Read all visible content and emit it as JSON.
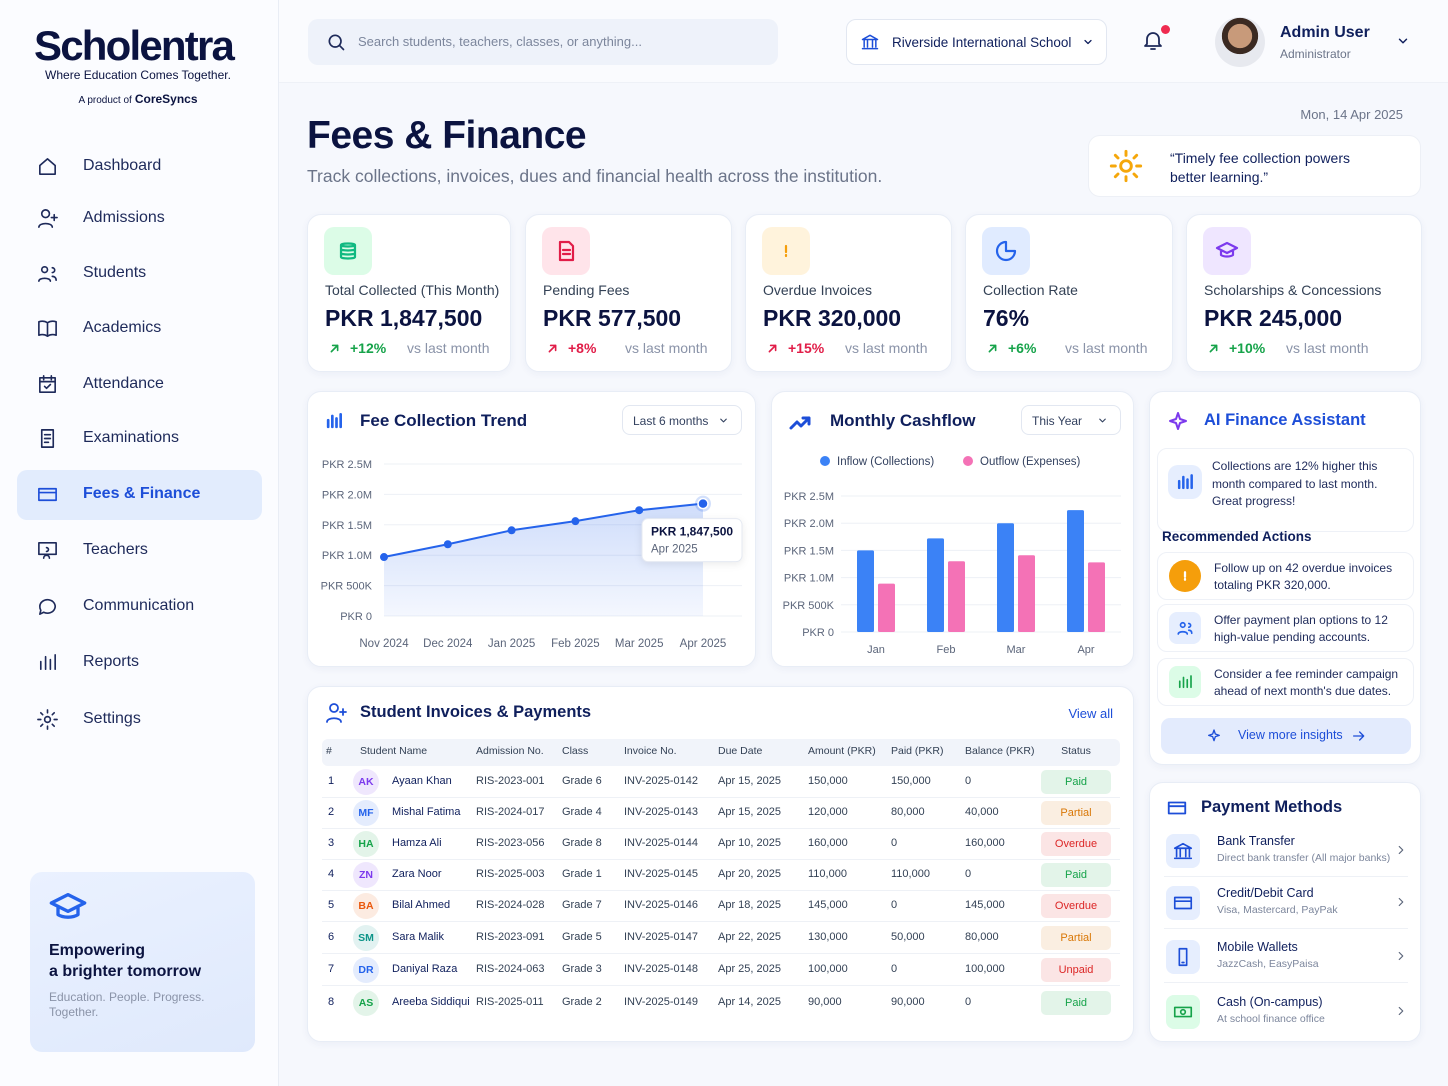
{
  "sidebar": {
    "brand": "Scholentra",
    "tagline": "Where Education Comes Together.",
    "product_prefix": "A product of",
    "product_name": "CoreSyncs",
    "nav": [
      "Dashboard",
      "Admissions",
      "Students",
      "Academics",
      "Attendance",
      "Examinations",
      "Fees & Finance",
      "Teachers",
      "Communication",
      "Reports",
      "Settings"
    ],
    "active_nav": 6,
    "promo": {
      "title_lines": [
        "Empowering",
        "a brighter tomorrow"
      ],
      "text": "Education. People. Progress. Together."
    }
  },
  "topbar": {
    "search_placeholder": "Search students, teachers, classes, or anything...",
    "school": "Riverside International School",
    "user_name": "Admin User",
    "user_role": "Administrator"
  },
  "header": {
    "date": "Mon, 14 Apr 2025",
    "title": "Fees & Finance",
    "subtitle": "Track collections, invoices, dues and financial health across the institution.",
    "quote": "“Timely fee collection powers better learning.”"
  },
  "stats": [
    {
      "label": "Total Collected (This Month)",
      "value": "PKR 1,847,500",
      "change": "+12%",
      "compare": "vs last month",
      "color": "#16a34a",
      "icon_color": "#10b981",
      "icon_bg": "#dcfce7"
    },
    {
      "label": "Pending Fees",
      "value": "PKR 577,500",
      "change": "+8%",
      "compare": "vs last month",
      "color": "#e11d48",
      "icon_color": "#e11d48",
      "icon_bg": "#ffe4ea"
    },
    {
      "label": "Overdue Invoices",
      "value": "PKR 320,000",
      "change": "+15%",
      "compare": "vs last month",
      "color": "#e11d48",
      "icon_color": "#f59e0b",
      "icon_bg": "#fff3dc"
    },
    {
      "label": "Collection Rate",
      "value": "76%",
      "change": "+6%",
      "compare": "vs last month",
      "color": "#16a34a",
      "icon_color": "#2563eb",
      "icon_bg": "#e0ebff"
    },
    {
      "label": "Scholarships & Concessions",
      "value": "PKR 245,000",
      "change": "+10%",
      "compare": "vs last month",
      "color": "#16a34a",
      "icon_color": "#7c3aed",
      "icon_bg": "#efe6ff"
    }
  ],
  "fee_trend": {
    "type": "line",
    "title": "Fee Collection Trend",
    "range_select": "Last 6 months",
    "categories": [
      "Nov 2024",
      "Dec 2024",
      "Jan 2025",
      "Feb 2025",
      "Mar 2025",
      "Apr 2025"
    ],
    "values": [
      970000,
      1180000,
      1410000,
      1560000,
      1740000,
      1847500
    ],
    "value_labels": [
      null,
      null,
      null,
      null,
      null,
      "PKR 1,847,500"
    ],
    "color": "#2563eb",
    "ylim": [
      0,
      2500000
    ],
    "yticks": [
      {
        "value": 0,
        "label": "PKR 0"
      },
      {
        "value": 500000,
        "label": "PKR 500K"
      },
      {
        "value": 1000000,
        "label": "PKR 1.0M"
      },
      {
        "value": 1500000,
        "label": "PKR 1.5M"
      },
      {
        "value": 2000000,
        "label": "PKR 2.0M"
      },
      {
        "value": 2500000,
        "label": "PKR 2.5M"
      }
    ],
    "grid": true
  },
  "cashflow": {
    "type": "bar",
    "title": "Monthly Cashflow",
    "range_select": "This Year",
    "categories": [
      "Jan",
      "Feb",
      "Mar",
      "Apr"
    ],
    "series": [
      {
        "name": "Inflow (Collections)",
        "color": "#3b82f6",
        "values": [
          1500000,
          1720000,
          2000000,
          2240000
        ]
      },
      {
        "name": "Outflow (Expenses)",
        "color": "#f472b6",
        "values": [
          890000,
          1300000,
          1410000,
          1280000
        ]
      }
    ],
    "ylim": [
      0,
      2500000
    ],
    "yticks": [
      {
        "value": 0,
        "label": "PKR 0"
      },
      {
        "value": 500000,
        "label": "PKR 500K"
      },
      {
        "value": 1000000,
        "label": "PKR 1.0M"
      },
      {
        "value": 1500000,
        "label": "PKR 1.5M"
      },
      {
        "value": 2000000,
        "label": "PKR 2.0M"
      },
      {
        "value": 2500000,
        "label": "PKR 2.5M"
      }
    ],
    "grid": true,
    "legend": "top"
  },
  "ai_assistant": {
    "title": "AI Finance Assistant",
    "insight": "Collections are 12% higher this month compared to last month. Great progress!",
    "actions_title": "Recommended Actions",
    "actions": [
      "Follow up on 42 overdue invoices totaling PKR 320,000.",
      "Offer payment plan options to 12 high-value pending accounts.",
      "Consider a fee reminder campaign ahead of next month's due dates."
    ],
    "button": "View more insights"
  },
  "invoices": {
    "title": "Student Invoices & Payments",
    "view_all": "View all",
    "columns": [
      "#",
      "Student Name",
      "Admission No.",
      "Class",
      "Invoice No.",
      "Due Date",
      "Amount (PKR)",
      "Paid (PKR)",
      "Balance (PKR)",
      "Status"
    ],
    "rows": [
      {
        "no": "1",
        "initials": "AK",
        "name": "Ayaan Khan",
        "admission_no": "RIS-2023-001",
        "class": "Grade 6",
        "invoice_no": "INV-2025-0142",
        "due_date": "Apr 15, 2025",
        "amount": "150,000",
        "paid": "150,000",
        "balance": "0",
        "status": "Paid",
        "avatar_color": "#7c3aed",
        "status_color": "#16a34a"
      },
      {
        "no": "2",
        "initials": "MF",
        "name": "Mishal Fatima",
        "admission_no": "RIS-2024-017",
        "class": "Grade 4",
        "invoice_no": "INV-2025-0143",
        "due_date": "Apr 15, 2025",
        "amount": "120,000",
        "paid": "80,000",
        "balance": "40,000",
        "status": "Partial",
        "avatar_color": "#2563eb",
        "status_color": "#d97706"
      },
      {
        "no": "3",
        "initials": "HA",
        "name": "Hamza Ali",
        "admission_no": "RIS-2023-056",
        "class": "Grade 8",
        "invoice_no": "INV-2025-0144",
        "due_date": "Apr 10, 2025",
        "amount": "160,000",
        "paid": "0",
        "balance": "160,000",
        "status": "Overdue",
        "avatar_color": "#16a34a",
        "status_color": "#dc2626"
      },
      {
        "no": "4",
        "initials": "ZN",
        "name": "Zara Noor",
        "admission_no": "RIS-2025-003",
        "class": "Grade 1",
        "invoice_no": "INV-2025-0145",
        "due_date": "Apr 20, 2025",
        "amount": "110,000",
        "paid": "110,000",
        "balance": "0",
        "status": "Paid",
        "avatar_color": "#7c3aed",
        "status_color": "#16a34a"
      },
      {
        "no": "5",
        "initials": "BA",
        "name": "Bilal Ahmed",
        "admission_no": "RIS-2024-028",
        "class": "Grade 7",
        "invoice_no": "INV-2025-0146",
        "due_date": "Apr 18, 2025",
        "amount": "145,000",
        "paid": "0",
        "balance": "145,000",
        "status": "Overdue",
        "avatar_color": "#ea580c",
        "status_color": "#dc2626"
      },
      {
        "no": "6",
        "initials": "SM",
        "name": "Sara Malik",
        "admission_no": "RIS-2023-091",
        "class": "Grade 5",
        "invoice_no": "INV-2025-0147",
        "due_date": "Apr 22, 2025",
        "amount": "130,000",
        "paid": "50,000",
        "balance": "80,000",
        "status": "Partial",
        "avatar_color": "#0d9488",
        "status_color": "#d97706"
      },
      {
        "no": "7",
        "initials": "DR",
        "name": "Daniyal Raza",
        "admission_no": "RIS-2024-063",
        "class": "Grade 3",
        "invoice_no": "INV-2025-0148",
        "due_date": "Apr 25, 2025",
        "amount": "100,000",
        "paid": "0",
        "balance": "100,000",
        "status": "Unpaid",
        "avatar_color": "#2563eb",
        "status_color": "#dc2626"
      },
      {
        "no": "8",
        "initials": "AS",
        "name": "Areeba Siddiqui",
        "admission_no": "RIS-2025-011",
        "class": "Grade 2",
        "invoice_no": "INV-2025-0149",
        "due_date": "Apr 14, 2025",
        "amount": "90,000",
        "paid": "90,000",
        "balance": "0",
        "status": "Paid",
        "avatar_color": "#16a34a",
        "status_color": "#16a34a"
      }
    ]
  },
  "payment_methods": {
    "title": "Payment Methods",
    "items": [
      {
        "name": "Bank Transfer",
        "description": "Direct bank transfer (All major banks)"
      },
      {
        "name": "Credit/Debit Card",
        "description": "Visa, Mastercard, PayPak"
      },
      {
        "name": "Mobile Wallets",
        "description": "JazzCash, EasyPaisa"
      },
      {
        "name": "Cash (On-campus)",
        "description": "At school finance office"
      }
    ]
  }
}
